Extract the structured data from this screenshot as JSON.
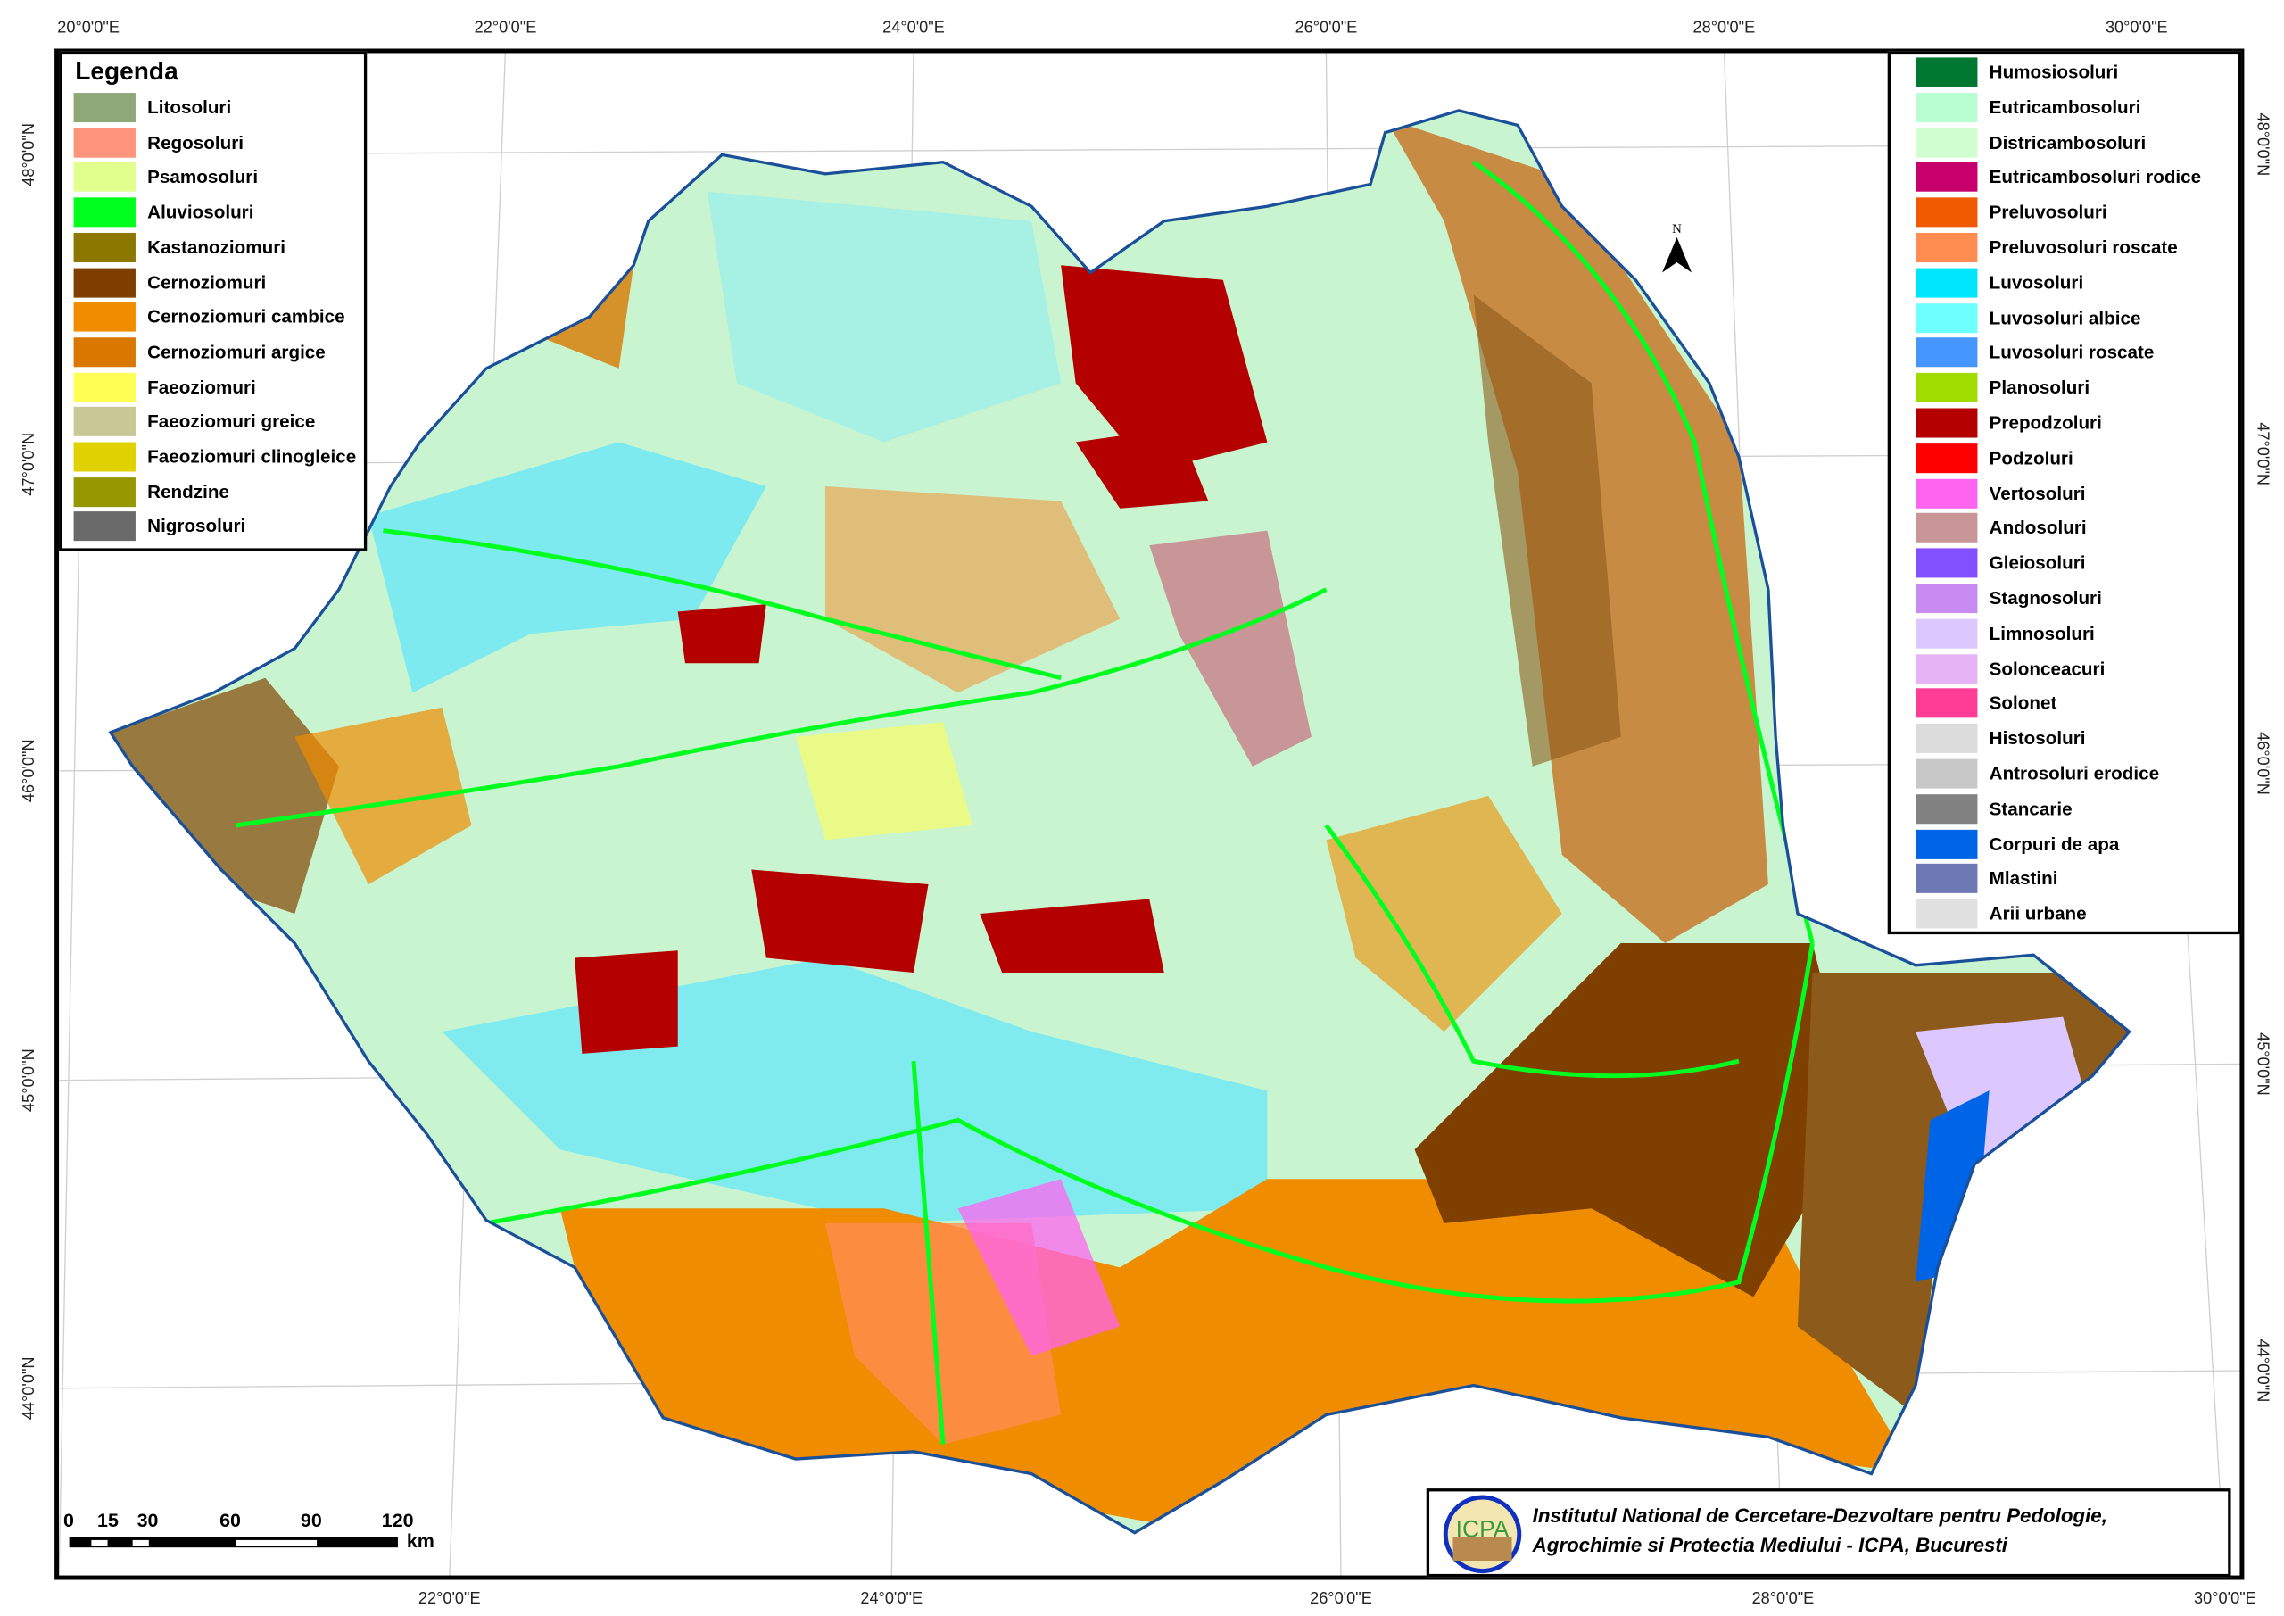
{
  "legend_left": {
    "title": "Legenda",
    "items": [
      {
        "label": "Litosoluri",
        "color": "#8fa878"
      },
      {
        "label": "Regosoluri",
        "color": "#ff947c"
      },
      {
        "label": "Psamosoluri",
        "color": "#e1ff8c"
      },
      {
        "label": "Aluviosoluri",
        "color": "#00ff1e"
      },
      {
        "label": "Kastanoziomuri",
        "color": "#8c7800"
      },
      {
        "label": "Cernoziomuri",
        "color": "#7f3f00"
      },
      {
        "label": "Cernoziomuri cambice",
        "color": "#f08c00"
      },
      {
        "label": "Cernoziomuri argice",
        "color": "#d87800"
      },
      {
        "label": "Faeoziomuri",
        "color": "#ffff55"
      },
      {
        "label": "Faeoziomuri greice",
        "color": "#c8c896"
      },
      {
        "label": "Faeoziomuri clinogleice",
        "color": "#e0d200"
      },
      {
        "label": "Rendzine",
        "color": "#969600"
      },
      {
        "label": "Nigrosoluri",
        "color": "#6a6a6a"
      }
    ]
  },
  "legend_right": {
    "items": [
      {
        "label": "Humosiosoluri",
        "color": "#007832"
      },
      {
        "label": "Eutricambosoluri",
        "color": "#baffd2"
      },
      {
        "label": "Districambosoluri",
        "color": "#d2ffd2"
      },
      {
        "label": "Eutricambosoluri rodice",
        "color": "#c8006e"
      },
      {
        "label": "Preluvosoluri",
        "color": "#f05a00"
      },
      {
        "label": "Preluvosoluri roscate",
        "color": "#ff8c50"
      },
      {
        "label": "Luvosoluri",
        "color": "#00e6ff"
      },
      {
        "label": "Luvosoluri albice",
        "color": "#6effff"
      },
      {
        "label": "Luvosoluri roscate",
        "color": "#4696ff"
      },
      {
        "label": "Planosoluri",
        "color": "#a0dc00"
      },
      {
        "label": "Prepodzoluri",
        "color": "#b40000"
      },
      {
        "label": "Podzoluri",
        "color": "#ff0000"
      },
      {
        "label": "Vertosoluri",
        "color": "#ff64f0"
      },
      {
        "label": "Andosoluri",
        "color": "#c89696"
      },
      {
        "label": "Gleiosoluri",
        "color": "#8250ff"
      },
      {
        "label": "Stagnosoluri",
        "color": "#c88cf0"
      },
      {
        "label": "Limnosoluri",
        "color": "#dcc8ff"
      },
      {
        "label": "Solonceacuri",
        "color": "#e6b4f5"
      },
      {
        "label": "Solonet",
        "color": "#ff3c96"
      },
      {
        "label": "Histosoluri",
        "color": "#dcdcdc"
      },
      {
        "label": "Antrosoluri erodice",
        "color": "#c8c8c8"
      },
      {
        "label": "Stancarie",
        "color": "#828282"
      },
      {
        "label": "Corpuri de apa",
        "color": "#0064e6"
      },
      {
        "label": "Mlastini",
        "color": "#6e78b4"
      },
      {
        "label": "Arii urbane",
        "color": "#e1e1e1"
      }
    ]
  },
  "graticule": {
    "top": [
      "20°0'0\"E",
      "22°0'0\"E",
      "24°0'0\"E",
      "26°0'0\"E",
      "28°0'0\"E",
      "30°0'0\"E"
    ],
    "bottom": [
      "22°0'0\"E",
      "24°0'0\"E",
      "26°0'0\"E",
      "28°0'0\"E",
      "30°0'0\"E"
    ],
    "left": [
      "48°0'0\"N",
      "47°0'0\"N",
      "46°0'0\"N",
      "45°0'0\"N",
      "44°0'0\"N"
    ],
    "right": [
      "48°0'0\"N",
      "47°0'0\"N",
      "46°0'0\"N",
      "45°0'0\"N",
      "44°0'0\"N"
    ]
  },
  "north_arrow": {
    "label": "N"
  },
  "scale_bar": {
    "ticks": [
      "0",
      "15",
      "30",
      "60",
      "90",
      "120"
    ],
    "unit": "km"
  },
  "institution": {
    "logo_text": "ICPA",
    "line1": "Institutul National de Cercetare-Dezvoltare pentru Pedologie,",
    "line2": "Agrochimie si Protectia Mediului - ICPA, Bucuresti"
  }
}
